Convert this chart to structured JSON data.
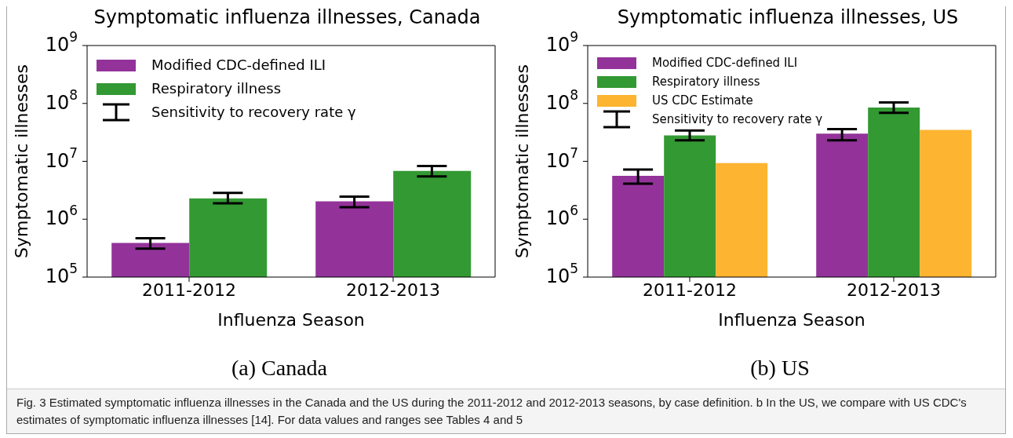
{
  "chart_data": [
    {
      "type": "bar",
      "title": "Symptomatic influenza illnesses, Canada",
      "xlabel": "Influenza Season",
      "ylabel": "Symptomatic illnesses",
      "categories": [
        "2011-2012",
        "2012-2013"
      ],
      "series": [
        {
          "name": "Modified CDC-defined ILI",
          "color": "#93339a",
          "values": [
            390000,
            2030000
          ],
          "errors": [
            [
              310000,
              470000
            ],
            [
              1610000,
              2460000
            ]
          ]
        },
        {
          "name": "Respiratory illness",
          "color": "#339933",
          "values": [
            2280000,
            6800000
          ],
          "errors": [
            [
              1880000,
              2840000
            ],
            [
              5500000,
              8300000
            ]
          ]
        }
      ],
      "log": true,
      "ylim": [
        100000,
        1000000000
      ],
      "yticks": [
        {
          "value": 100000,
          "label": "10$^{5}$"
        },
        {
          "value": 1000000,
          "label": "10$^{6}$"
        },
        {
          "value": 10000000,
          "label": "10$^{7}$"
        },
        {
          "value": 100000000,
          "label": "10$^{8}$"
        },
        {
          "value": 1000000000,
          "label": "10$^{9}$"
        }
      ],
      "legend": "top left",
      "grid": false,
      "annotations": [
        "Sensitivity to recovery rate γ",
        "(a) Canada",
        "Fig. 3 Estimated symptomatic influenza illnesses in the Canada and the US during the 2011-2012 and 2012-2013 seasons, by case definition. b In the US, we compare with US CDC's estimates of symptomatic influenza illnesses [14]. For data values and ranges see Tables 4 and 5"
      ]
    },
    {
      "type": "bar",
      "title": "Symptomatic influenza illnesses, US",
      "xlabel": "Influenza Season",
      "ylabel": "Symptomatic illnesses",
      "categories": [
        "2011-2012",
        "2012-2013"
      ],
      "series": [
        {
          "name": "Modified CDC-defined ILI",
          "color": "#93339a",
          "values": [
            5600000,
            30000000
          ],
          "errors": [
            [
              4100000,
              7200000
            ],
            [
              23000000,
              36000000
            ]
          ]
        },
        {
          "name": "Respiratory illness",
          "color": "#339933",
          "values": [
            28000000,
            85000000
          ],
          "errors": [
            [
              23000000,
              34000000
            ],
            [
              69000000,
              104000000
            ]
          ]
        },
        {
          "name": "US CDC Estimate",
          "color": "#fdb431",
          "values": [
            9300000,
            35000000
          ]
        }
      ],
      "log": true,
      "ylim": [
        100000,
        1000000000
      ],
      "yticks": [
        {
          "value": 100000,
          "label": "10$^{5}$"
        },
        {
          "value": 1000000,
          "label": "10$^{6}$"
        },
        {
          "value": 10000000,
          "label": "10$^{7}$"
        },
        {
          "value": 100000000,
          "label": "10$^{8}$"
        },
        {
          "value": 1000000000,
          "label": "10$^{9}$"
        }
      ],
      "legend": "top left",
      "grid": false,
      "annotations": [
        "Sensitivity to recovery rate γ",
        "(b) US"
      ]
    }
  ]
}
